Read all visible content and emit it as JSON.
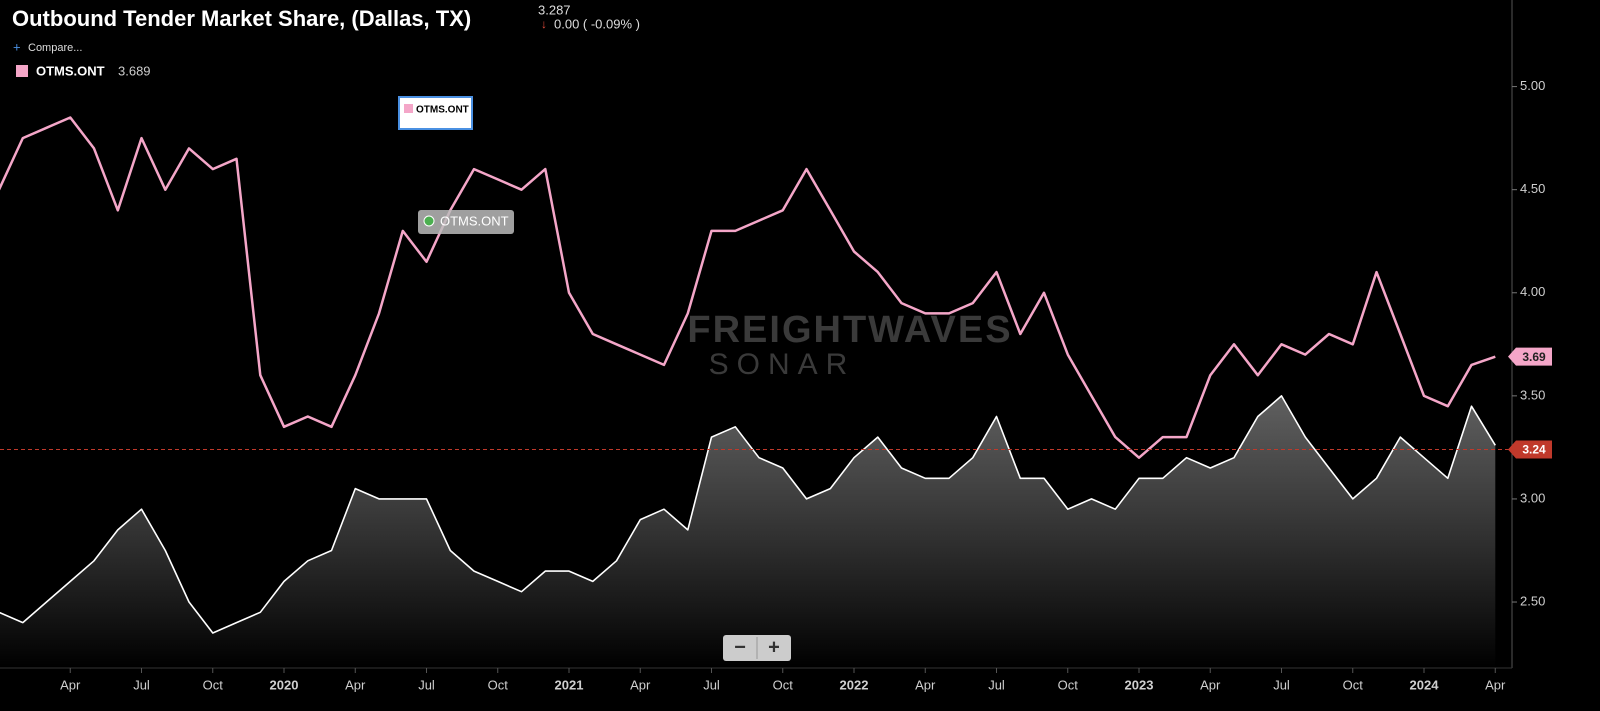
{
  "chart_data": {
    "type": "line",
    "title": "Outbound Tender Market Share, (Dallas, TX)",
    "header_value": "3.287",
    "header_change": "0.00 ( -0.09% )",
    "compare": "Compare...",
    "legend_value": "3.689",
    "floating_labels": [
      "OTMS.ONT",
      "OTMS.ONT"
    ],
    "watermark": [
      "FREIGHTWAVES",
      "SONAR"
    ],
    "zoom_buttons": [
      "−",
      "+"
    ],
    "x": [
      "2019-01",
      "2019-02",
      "2019-03",
      "2019-04",
      "2019-05",
      "2019-06",
      "2019-07",
      "2019-08",
      "2019-09",
      "2019-10",
      "2019-11",
      "2019-12",
      "2020-01",
      "2020-02",
      "2020-03",
      "2020-04",
      "2020-05",
      "2020-06",
      "2020-07",
      "2020-08",
      "2020-09",
      "2020-10",
      "2020-11",
      "2020-12",
      "2021-01",
      "2021-02",
      "2021-03",
      "2021-04",
      "2021-05",
      "2021-06",
      "2021-07",
      "2021-08",
      "2021-09",
      "2021-10",
      "2021-11",
      "2021-12",
      "2022-01",
      "2022-02",
      "2022-03",
      "2022-04",
      "2022-05",
      "2022-06",
      "2022-07",
      "2022-08",
      "2022-09",
      "2022-10",
      "2022-11",
      "2022-12",
      "2023-01",
      "2023-02",
      "2023-03",
      "2023-04",
      "2023-05",
      "2023-06",
      "2023-07",
      "2023-08",
      "2023-09",
      "2023-10",
      "2023-11",
      "2023-12",
      "2024-01",
      "2024-02",
      "2024-03",
      "2024-04"
    ],
    "series": [
      {
        "name": "OTMS.ONT",
        "color": "#f4a6c8",
        "values": [
          4.5,
          4.75,
          4.8,
          4.85,
          4.7,
          4.4,
          4.75,
          4.5,
          4.7,
          4.6,
          4.65,
          3.6,
          3.35,
          3.4,
          3.35,
          3.6,
          3.9,
          4.3,
          4.15,
          4.4,
          4.6,
          4.55,
          4.5,
          4.6,
          4.0,
          3.8,
          3.75,
          3.7,
          3.65,
          3.9,
          4.3,
          4.3,
          4.35,
          4.4,
          4.6,
          4.4,
          4.2,
          4.1,
          3.95,
          3.9,
          3.9,
          3.95,
          4.1,
          3.8,
          4.0,
          3.7,
          3.5,
          3.3,
          3.2,
          3.3,
          3.3,
          3.6,
          3.75,
          3.6,
          3.75,
          3.7,
          3.8,
          3.75,
          4.1,
          3.8,
          3.5,
          3.45,
          3.65,
          3.69
        ]
      },
      {
        "color": "#ffffff",
        "values": [
          2.45,
          2.4,
          2.5,
          2.6,
          2.7,
          2.85,
          2.95,
          2.75,
          2.5,
          2.35,
          2.4,
          2.45,
          2.6,
          2.7,
          2.75,
          3.05,
          3.0,
          3.0,
          3.0,
          2.75,
          2.65,
          2.6,
          2.55,
          2.65,
          2.65,
          2.6,
          2.7,
          2.9,
          2.95,
          2.85,
          3.3,
          3.35,
          3.2,
          3.15,
          3.0,
          3.05,
          3.2,
          3.3,
          3.15,
          3.1,
          3.1,
          3.2,
          3.4,
          3.1,
          3.1,
          2.95,
          3.0,
          2.95,
          3.1,
          3.1,
          3.2,
          3.15,
          3.2,
          3.4,
          3.5,
          3.3,
          3.15,
          3.0,
          3.1,
          3.3,
          3.2,
          3.1,
          3.45,
          3.26
        ]
      }
    ],
    "xlim": [
      "2019-01",
      "2024-05"
    ],
    "xticks": [
      {
        "value": "2019-04",
        "label": "Apr"
      },
      {
        "value": "2019-07",
        "label": "Jul"
      },
      {
        "value": "2019-10",
        "label": "Oct"
      },
      {
        "value": "2020-01",
        "label": "2020"
      },
      {
        "value": "2020-04",
        "label": "Apr"
      },
      {
        "value": "2020-07",
        "label": "Jul"
      },
      {
        "value": "2020-10",
        "label": "Oct"
      },
      {
        "value": "2021-01",
        "label": "2021"
      },
      {
        "value": "2021-04",
        "label": "Apr"
      },
      {
        "value": "2021-07",
        "label": "Jul"
      },
      {
        "value": "2021-10",
        "label": "Oct"
      },
      {
        "value": "2022-01",
        "label": "2022"
      },
      {
        "value": "2022-04",
        "label": "Apr"
      },
      {
        "value": "2022-07",
        "label": "Jul"
      },
      {
        "value": "2022-10",
        "label": "Oct"
      },
      {
        "value": "2023-01",
        "label": "2023"
      },
      {
        "value": "2023-04",
        "label": "Apr"
      },
      {
        "value": "2023-07",
        "label": "Jul"
      },
      {
        "value": "2023-10",
        "label": "Oct"
      },
      {
        "value": "2024-01",
        "label": "2024"
      },
      {
        "value": "2024-04",
        "label": "Apr"
      }
    ],
    "ylim": [
      2.18,
      5.42
    ],
    "yticks": [
      {
        "value": 2.5,
        "label": "2.50"
      },
      {
        "value": 3,
        "label": "3.00"
      },
      {
        "value": 3.5,
        "label": "3.50"
      },
      {
        "value": 4,
        "label": "4.00"
      },
      {
        "value": 4.5,
        "label": "4.50"
      },
      {
        "value": 5,
        "label": "5.00"
      }
    ],
    "last_value_badges": [
      {
        "value": 3.69,
        "label": "3.69",
        "color": "#f4a6c8"
      },
      {
        "value": 3.24,
        "label": "3.24",
        "color": "#c0392b"
      }
    ],
    "reference_line": {
      "value": 3.24,
      "color": "#c0392b"
    }
  }
}
